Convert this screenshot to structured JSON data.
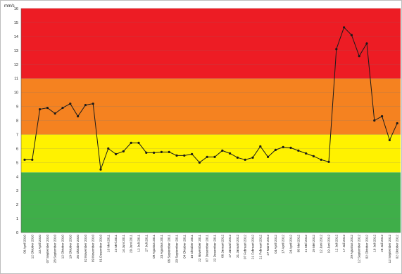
{
  "chart_data": {
    "type": "line",
    "title": "",
    "xlabel": "",
    "ylabel": "mm/s",
    "unit_label": "mm/s",
    "ylim": [
      0,
      16
    ],
    "yticks": [
      0,
      1,
      2,
      3,
      4,
      5,
      6,
      7,
      8,
      9,
      10,
      11,
      12,
      13,
      14,
      15,
      16
    ],
    "grid": true,
    "legend": "none",
    "bands": [
      {
        "from": 0,
        "to": 4.3,
        "color": "#3fae49"
      },
      {
        "from": 4.3,
        "to": 7,
        "color": "#fff200"
      },
      {
        "from": 7,
        "to": 11,
        "color": "#f58220"
      },
      {
        "from": 11,
        "to": 16,
        "color": "#ed1c24"
      }
    ],
    "line_color": "#1a1a1a",
    "categories": [
      "06 April 2010",
      "12 Oktober 2010",
      "22 April 2010",
      "07 September 2010",
      "28 September 2010",
      "12 Oktober 2010",
      "19 Oktober 2010",
      "26 Oktober 2010",
      "02 November 2010",
      "09 November 2010",
      "01 Desember 2010",
      "10 Mei 2011",
      "24 Mei 2011",
      "14 Juni 2011",
      "29 Juni 2011",
      "12 Juli 2011",
      "27 Juli 2011",
      "09 Agustus 2011",
      "23 Agustus 2011",
      "06 September 2011",
      "20 September 2011",
      "04 Oktober 2011",
      "18 Oktober 2011",
      "22 November 2011",
      "07 Desember 2011",
      "22 Desember 2011",
      "06 Januari 2012",
      "17 Januari 2012",
      "31 Januari 2012",
      "07 Februari 2012",
      "21 Februari 2012",
      "21 Februari 2012",
      "27 Maret 2012",
      "04 April 2012",
      "17 April 2012",
      "24 April 2012",
      "08 Mei 2012",
      "21 Mei 2012",
      "29 Mei 2012",
      "12 Juni 2012",
      "19 Juni 2012",
      "12 Juli 2012",
      "17 Juli 2012",
      "29 Agustus 2012",
      "12 September 2012",
      "02 Oktober 2012",
      "19 Juli 2012",
      "28 Juli 2012",
      "12 September 2012",
      "02 Oktober 2012"
    ],
    "values": [
      5.2,
      5.2,
      8.8,
      8.9,
      8.5,
      8.9,
      9.2,
      8.3,
      9.1,
      9.2,
      4.5,
      6.0,
      5.6,
      5.8,
      6.4,
      6.4,
      5.7,
      5.7,
      5.75,
      5.75,
      5.5,
      5.5,
      5.6,
      5.0,
      5.4,
      5.4,
      5.85,
      5.65,
      5.35,
      5.2,
      5.35,
      6.15,
      5.4,
      5.9,
      6.1,
      6.05,
      5.85,
      5.65,
      5.45,
      5.2,
      5.05,
      13.1,
      14.65,
      14.1,
      12.6,
      13.5,
      8.0,
      8.3,
      6.6,
      7.8
    ]
  }
}
